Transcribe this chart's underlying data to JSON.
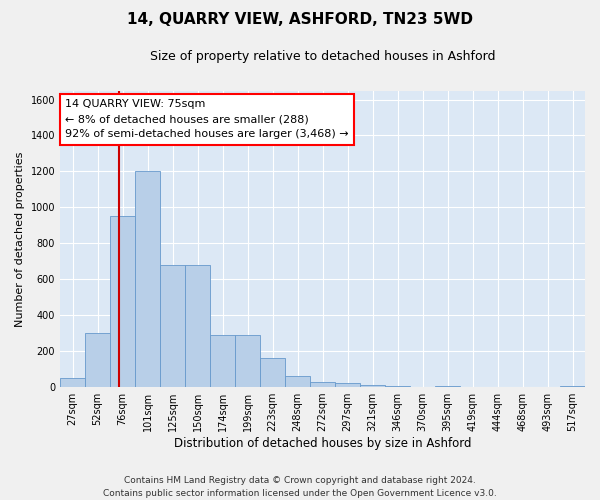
{
  "title": "14, QUARRY VIEW, ASHFORD, TN23 5WD",
  "subtitle": "Size of property relative to detached houses in Ashford",
  "xlabel": "Distribution of detached houses by size in Ashford",
  "ylabel": "Number of detached properties",
  "bar_color": "#b8cfe8",
  "bar_edge_color": "#6699cc",
  "background_color": "#dce8f5",
  "fig_background": "#f0f0f0",
  "grid_color": "#ffffff",
  "bin_labels": [
    "27sqm",
    "52sqm",
    "76sqm",
    "101sqm",
    "125sqm",
    "150sqm",
    "174sqm",
    "199sqm",
    "223sqm",
    "248sqm",
    "272sqm",
    "297sqm",
    "321sqm",
    "346sqm",
    "370sqm",
    "395sqm",
    "419sqm",
    "444sqm",
    "468sqm",
    "493sqm",
    "517sqm"
  ],
  "bar_values": [
    50,
    300,
    950,
    1200,
    680,
    680,
    290,
    290,
    160,
    60,
    30,
    20,
    10,
    5,
    0,
    5,
    0,
    0,
    0,
    0,
    5
  ],
  "ylim": [
    0,
    1650
  ],
  "yticks": [
    0,
    200,
    400,
    600,
    800,
    1000,
    1200,
    1400,
    1600
  ],
  "red_line_x": 1.85,
  "annotation_text": "14 QUARRY VIEW: 75sqm\n← 8% of detached houses are smaller (288)\n92% of semi-detached houses are larger (3,468) →",
  "footer": "Contains HM Land Registry data © Crown copyright and database right 2024.\nContains public sector information licensed under the Open Government Licence v3.0.",
  "title_fontsize": 11,
  "subtitle_fontsize": 9,
  "annotation_fontsize": 8,
  "tick_fontsize": 7,
  "ylabel_fontsize": 8,
  "xlabel_fontsize": 8.5
}
